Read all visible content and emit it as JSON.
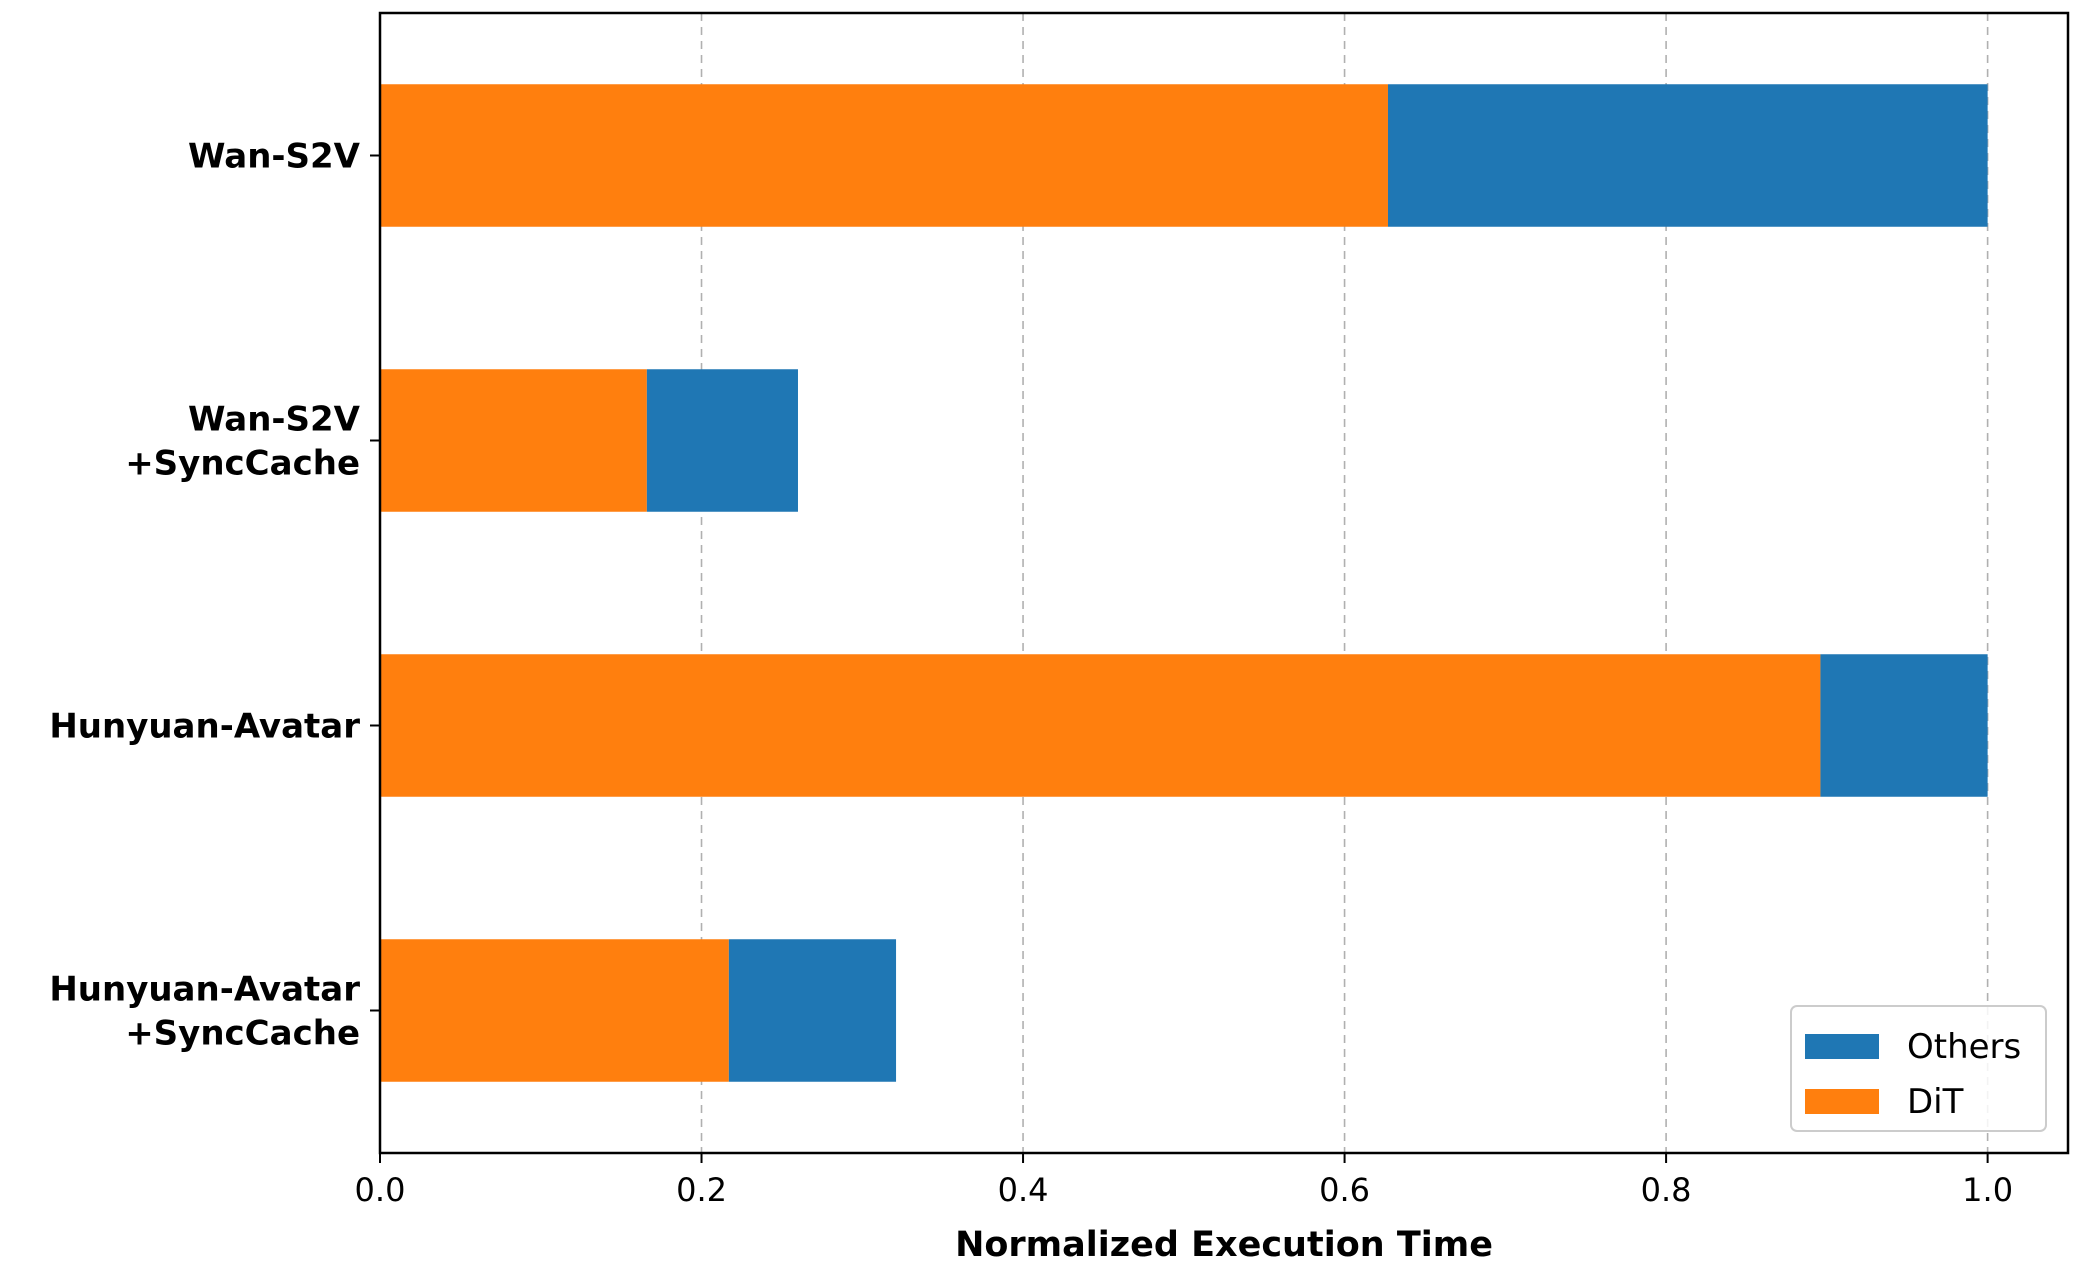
{
  "chart_data": {
    "type": "bar",
    "orientation": "horizontal",
    "stacked": true,
    "categories": [
      "Wan-S2V",
      "Wan-S2V\n+SyncCache",
      "Hunyuan-Avatar",
      "Hunyuan-Avatar\n+SyncCache"
    ],
    "series": [
      {
        "name": "DiT",
        "color": "#ff7f0e",
        "values": [
          0.627,
          0.166,
          0.896,
          0.217
        ]
      },
      {
        "name": "Others",
        "color": "#1f77b4",
        "values": [
          0.373,
          0.094,
          0.104,
          0.104
        ]
      }
    ],
    "xlabel": "Normalized Execution Time",
    "ylabel": "",
    "xlim": [
      0,
      1.05
    ],
    "xticks": [
      0.0,
      0.2,
      0.4,
      0.6,
      0.8,
      1.0
    ],
    "xtick_labels": [
      "0.0",
      "0.2",
      "0.4",
      "0.6",
      "0.8",
      "1.0"
    ],
    "grid": "x-dashed",
    "legend": {
      "placement": "lower-right",
      "entries": [
        "Others",
        "DiT"
      ]
    }
  }
}
